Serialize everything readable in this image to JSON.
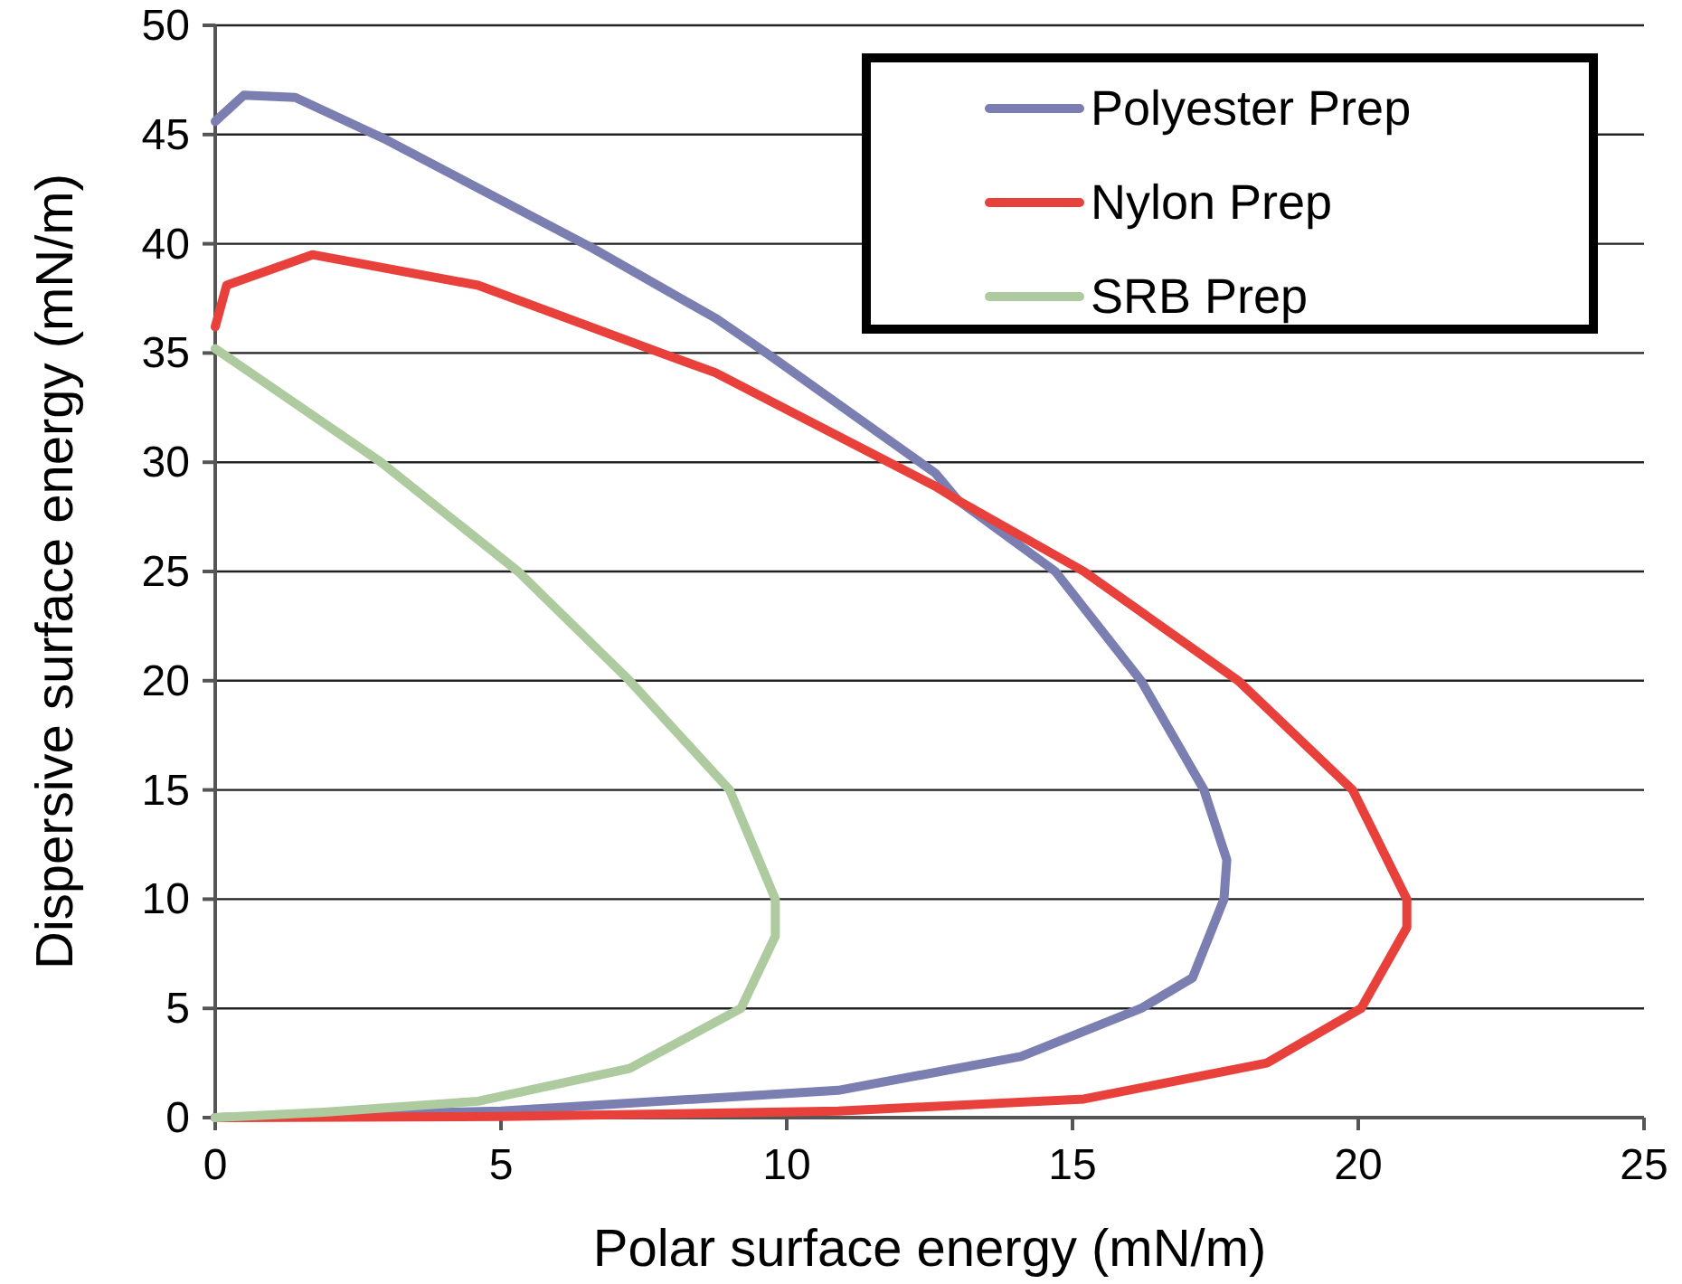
{
  "chart_data": {
    "type": "line",
    "xlabel": "Polar surface energy (mN/m)",
    "ylabel": "Dispersive surface energy (mN/m)",
    "xlim": [
      0,
      25
    ],
    "xticks": [
      0,
      5,
      10,
      15,
      20,
      25
    ],
    "ylim": [
      0,
      50
    ],
    "yticks": [
      0,
      5,
      10,
      15,
      20,
      25,
      30,
      35,
      40,
      45,
      50
    ],
    "grid": "y",
    "legend": "top right",
    "marker": "none",
    "line_style": "solid",
    "series": [
      {
        "name": "Polyester Prep",
        "color": "#7a7eb0",
        "x": [
          0,
          0.5,
          1.4,
          3.0,
          6.6,
          8.75,
          9.7,
          12.6,
          13.0,
          14.7,
          16.2,
          17.3,
          17.7,
          17.65,
          17.1,
          16.2,
          14.1,
          10.9,
          5,
          0
        ],
        "values": [
          45.6,
          46.8,
          46.7,
          44.75,
          39.8,
          36.6,
          34.9,
          29.5,
          28.25,
          25,
          20,
          15,
          11.8,
          10,
          6.4,
          5,
          2.8,
          1.25,
          0.3,
          0
        ]
      },
      {
        "name": "Nylon Prep",
        "color": "#e8413c",
        "x": [
          0,
          0.2,
          1.7,
          4.6,
          7.8,
          8.75,
          12.6,
          13.0,
          15.2,
          17.9,
          19.9,
          20.85,
          20.85,
          20.05,
          18.4,
          15.2,
          10.9,
          5,
          0
        ],
        "values": [
          36.2,
          38.1,
          39.5,
          38.1,
          35,
          34.1,
          28.9,
          28.25,
          25,
          20,
          15,
          10,
          8.7,
          5,
          2.5,
          0.85,
          0.3,
          0.05,
          0
        ]
      },
      {
        "name": "SRB Prep",
        "color": "#aecb9f",
        "x": [
          0,
          2.9,
          5.3,
          7.25,
          9.0,
          9.8,
          9.8,
          9.2,
          7.25,
          4.6,
          1.9,
          0
        ],
        "values": [
          35.2,
          30,
          25,
          20,
          15,
          10,
          8.3,
          5,
          2.25,
          0.75,
          0.25,
          0
        ]
      }
    ]
  }
}
